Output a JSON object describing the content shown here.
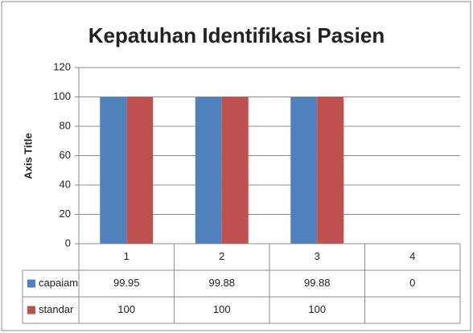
{
  "chart_data": {
    "type": "bar",
    "title": "Kepatuhan Identifikasi Pasien",
    "y_axis_label": "Axis Title",
    "categories": [
      "1",
      "2",
      "3",
      "4"
    ],
    "series": [
      {
        "name": "capaiam",
        "color": "#4f81bd",
        "values": [
          99.95,
          99.88,
          99.88,
          0
        ]
      },
      {
        "name": "standar",
        "color": "#c0504d",
        "values": [
          100,
          100,
          100,
          null
        ]
      }
    ],
    "ylim": [
      0,
      120
    ],
    "yticks": [
      0,
      20,
      40,
      60,
      80,
      100,
      120
    ],
    "grid": true,
    "data_table": true
  }
}
